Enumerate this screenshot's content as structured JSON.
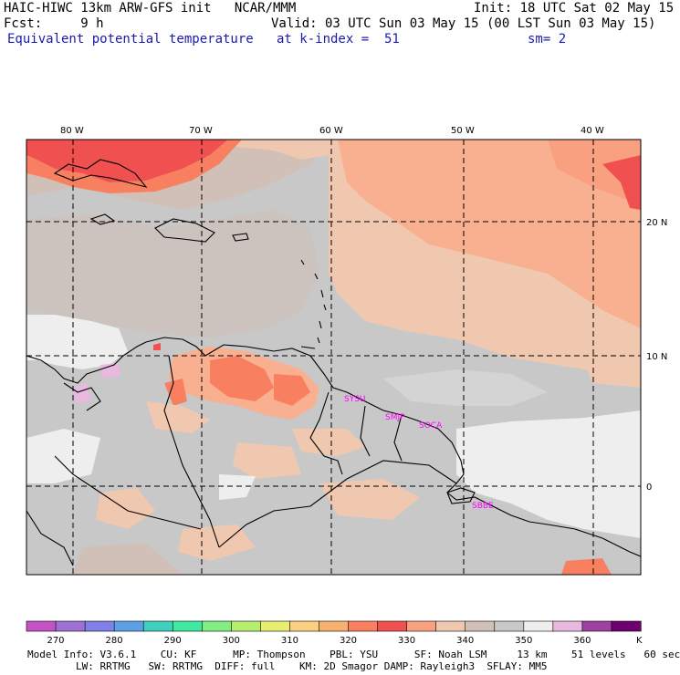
{
  "header": {
    "left1": "HAIC-HIWC 13km ARW-GFS init   NCAR/MMM",
    "left2": "Fcst:     9 h",
    "left3": "Equivalent potential temperature",
    "right1": "Init: 18 UTC Sat 02 May 15",
    "right2": "Valid: 03 UTC Sun 03 May 15 (00 LST Sun 03 May 15)",
    "right3a": "at k-index =  51",
    "right3b": "sm= 2"
  },
  "map": {
    "lon_labels": [
      "80 W",
      "70 W",
      "60 W",
      "50 W",
      "40 W"
    ],
    "lat_labels": [
      "20 N",
      "10 N",
      "0"
    ],
    "stations": [
      "SYSU",
      "SMJP",
      "SOCA",
      "SBBE"
    ]
  },
  "colorbar": {
    "colors": [
      "#c653c6",
      "#9f70d4",
      "#8080e8",
      "#5da0e8",
      "#40d0c0",
      "#40e8a0",
      "#80ee80",
      "#b8ee70",
      "#e8ee70",
      "#f8d080",
      "#f8b070",
      "#f88060",
      "#f05050",
      "#f8a080",
      "#f0c8b0",
      "#d0c0b8",
      "#c8c8c8",
      "#eeeeee",
      "#e8b8e0",
      "#a040a0",
      "#700070"
    ],
    "ticks": [
      "270",
      "280",
      "290",
      "300",
      "310",
      "320",
      "330",
      "340",
      "350",
      "360"
    ],
    "unit": "K"
  },
  "footer": {
    "line1": "Model Info: V3.6.1    CU: KF      MP: Thompson    PBL: YSU      SF: Noah LSM     13 km    51 levels   60 sec",
    "line2": "        LW: RRTMG   SW: RRTMG  DIFF: full    KM: 2D Smagor DAMP: Rayleigh3  SFLAY: MM5"
  }
}
